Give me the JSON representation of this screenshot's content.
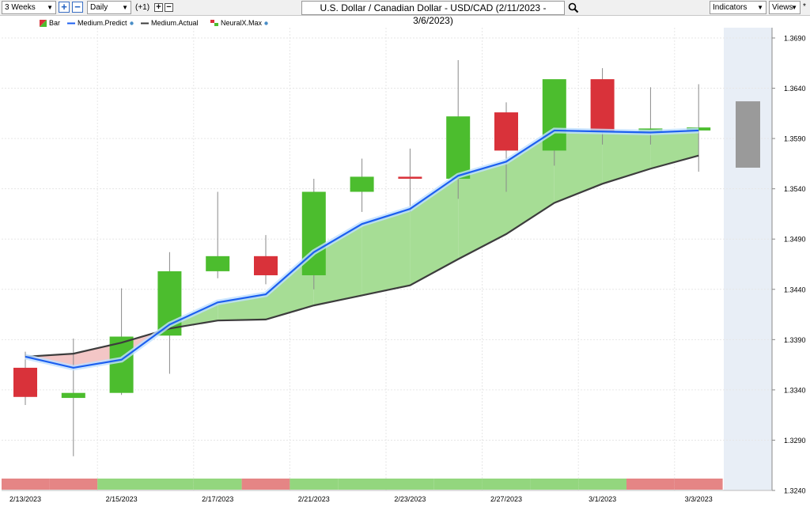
{
  "toolbar": {
    "range": "3 Weeks",
    "interval": "Daily",
    "offset": "(+1)",
    "plus": "+",
    "minus": "−",
    "title": "U.S. Dollar / Canadian Dollar - USD/CAD (2/11/2023 - 3/6/2023)",
    "indicators": "Indicators",
    "views": "Views",
    "star": "*"
  },
  "legend": [
    {
      "label": "Bar",
      "icon": "bar-swatch-icon"
    },
    {
      "label": "Medium.Predict",
      "icon": "blue-line-icon"
    },
    {
      "label": "Medium.Actual",
      "icon": "black-line-icon"
    },
    {
      "label": "NeuralX.Max",
      "icon": "neuralx-icon"
    }
  ],
  "colors": {
    "up": "#4cbd2e",
    "down": "#d9323a",
    "predict": "#1c5ff0",
    "actual": "#3c3c3c",
    "fill_up": "#a6dd95",
    "fill_down": "#f3c6c6",
    "strip_up": "#93d67e",
    "strip_down": "#e58585",
    "future": "#e8eef6",
    "forecast_bar": "#9a9a9a"
  },
  "chart_data": {
    "type": "candlestick",
    "ylim": [
      1.324,
      1.37
    ],
    "y_ticks": [
      "1.3690",
      "1.3640",
      "1.3590",
      "1.3540",
      "1.3490",
      "1.3440",
      "1.3390",
      "1.3340",
      "1.3290",
      "1.3240"
    ],
    "x_labels": [
      "2/13/2023",
      "2/15/2023",
      "2/17/2023",
      "2/21/2023",
      "2/23/2023",
      "2/27/2023",
      "3/1/2023",
      "3/3/2023"
    ],
    "x_label_bar_index": [
      0,
      2,
      4,
      6,
      8,
      10,
      12,
      14
    ],
    "candles": [
      {
        "open": 1.3362,
        "high": 1.3378,
        "low": 1.3325,
        "close": 1.3333
      },
      {
        "open": 1.3332,
        "high": 1.3391,
        "low": 1.3274,
        "close": 1.3337
      },
      {
        "open": 1.3337,
        "high": 1.3441,
        "low": 1.3335,
        "close": 1.3393
      },
      {
        "open": 1.3394,
        "high": 1.3477,
        "low": 1.3356,
        "close": 1.3458
      },
      {
        "open": 1.3458,
        "high": 1.3537,
        "low": 1.3451,
        "close": 1.3473
      },
      {
        "open": 1.3473,
        "high": 1.3494,
        "low": 1.3445,
        "close": 1.3454
      },
      {
        "open": 1.3454,
        "high": 1.355,
        "low": 1.344,
        "close": 1.3537
      },
      {
        "open": 1.3537,
        "high": 1.357,
        "low": 1.3517,
        "close": 1.3552
      },
      {
        "open": 1.3552,
        "high": 1.358,
        "low": 1.3517,
        "close": 1.355
      },
      {
        "open": 1.355,
        "high": 1.3668,
        "low": 1.353,
        "close": 1.3612
      },
      {
        "open": 1.3616,
        "high": 1.3626,
        "low": 1.3537,
        "close": 1.3578
      },
      {
        "open": 1.3578,
        "high": 1.3648,
        "low": 1.3563,
        "close": 1.3649
      },
      {
        "open": 1.3649,
        "high": 1.366,
        "low": 1.3584,
        "close": 1.3597
      },
      {
        "open": 1.3597,
        "high": 1.3641,
        "low": 1.3584,
        "close": 1.36
      },
      {
        "open": 1.3598,
        "high": 1.3644,
        "low": 1.3557,
        "close": 1.3601
      }
    ],
    "forecast_bar": {
      "open": 1.3627,
      "close": 1.3561
    },
    "series": [
      {
        "name": "Medium.Predict",
        "values": [
          1.3373,
          1.3362,
          1.337,
          1.3405,
          1.3427,
          1.3435,
          1.3477,
          1.3505,
          1.352,
          1.3553,
          1.3567,
          1.3598,
          1.3597,
          1.3596,
          1.3598
        ]
      },
      {
        "name": "Medium.Actual",
        "values": [
          1.3373,
          1.3376,
          1.3387,
          1.3401,
          1.3409,
          1.341,
          1.3424,
          1.3434,
          1.3444,
          1.347,
          1.3495,
          1.3526,
          1.3545,
          1.356,
          1.3573
        ]
      }
    ],
    "strip_signals": [
      "down",
      "down",
      "up",
      "up",
      "up",
      "down",
      "up",
      "up",
      "up",
      "up",
      "up",
      "up",
      "up",
      "down",
      "down"
    ]
  }
}
